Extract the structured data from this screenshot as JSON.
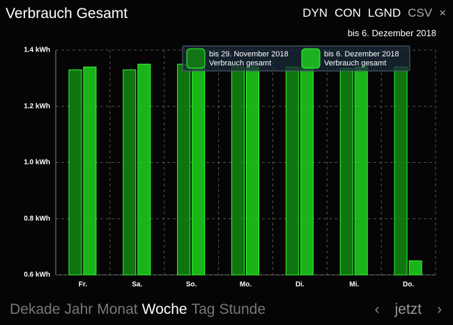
{
  "header": {
    "title": "Verbrauch Gesamt",
    "buttons": [
      "DYN",
      "CON",
      "LGND",
      "CSV",
      "×"
    ]
  },
  "chart_data": {
    "type": "bar",
    "subtitle": "bis 6. Dezember 2018",
    "categories": [
      "Fr.",
      "Sa.",
      "So.",
      "Mo.",
      "Di.",
      "Mi.",
      "Do."
    ],
    "series": [
      {
        "name": "bis 29. November 2018",
        "description": "Verbrauch gesamt",
        "color": "#128a12",
        "values": [
          1.33,
          1.33,
          1.35,
          1.34,
          1.34,
          1.335,
          1.34
        ]
      },
      {
        "name": "bis 6. Dezember 2018",
        "description": "Verbrauch gesamt",
        "color": "#1fd41f",
        "values": [
          1.34,
          1.35,
          1.34,
          1.34,
          1.34,
          1.34,
          0.65
        ]
      }
    ],
    "ylim": [
      0.6,
      1.4
    ],
    "yticks": [
      {
        "value": 0.6,
        "label": "0.6 kWh"
      },
      {
        "value": 0.8,
        "label": "0.8 kWh"
      },
      {
        "value": 1.0,
        "label": "1.0 kWh"
      },
      {
        "value": 1.2,
        "label": "1.2 kWh"
      },
      {
        "value": 1.4,
        "label": "1.4 kWh"
      }
    ],
    "grid": true,
    "legend": "top-right"
  },
  "navigation": {
    "periods": [
      "Dekade",
      "Jahr",
      "Monat",
      "Woche",
      "Tag",
      "Stunde"
    ],
    "active_index": 3,
    "pager": [
      "‹",
      "jetzt",
      "›"
    ]
  }
}
